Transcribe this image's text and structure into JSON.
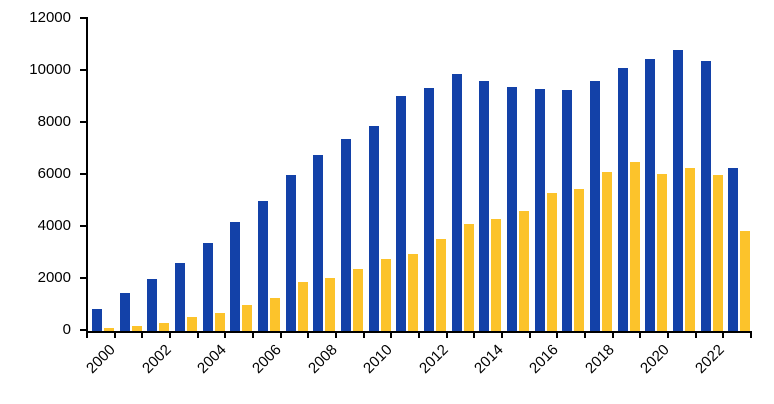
{
  "chart_data": {
    "type": "bar",
    "title": "",
    "xlabel": "",
    "ylabel": "",
    "categories": [
      "2000",
      "2001",
      "2002",
      "2003",
      "2004",
      "2005",
      "2006",
      "2007",
      "2008",
      "2009",
      "2010",
      "2011",
      "2012",
      "2013",
      "2014",
      "2015",
      "2016",
      "2017",
      "2018",
      "2019",
      "2020",
      "2021",
      "2022",
      "2023"
    ],
    "series": [
      {
        "name": "blue-series",
        "color": "#1341A8",
        "values": [
          850,
          1450,
          2000,
          2600,
          3400,
          4200,
          5000,
          6000,
          6750,
          7400,
          7900,
          9050,
          9350,
          9900,
          9600,
          9400,
          9300,
          9250,
          9600,
          10100,
          10450,
          10800,
          10400,
          6250
        ]
      },
      {
        "name": "yellow-series",
        "color": "#FCC32B",
        "values": [
          100,
          180,
          300,
          550,
          700,
          1000,
          1250,
          1900,
          2050,
          2400,
          2750,
          2950,
          3550,
          4100,
          4300,
          4600,
          5300,
          5450,
          6100,
          6500,
          6050,
          6250,
          6000,
          3850
        ]
      }
    ],
    "ylim": [
      0,
      12000
    ],
    "ytick_step": 2000,
    "ytick_labels": [
      "0",
      "2000",
      "4000",
      "6000",
      "8000",
      "10000",
      "12000"
    ],
    "xtick_labels": [
      "2000",
      "2002",
      "2004",
      "2006",
      "2008",
      "2010",
      "2012",
      "2014",
      "2016",
      "2018",
      "2020",
      "2022"
    ],
    "xtick_label_every": 2,
    "grid": false,
    "legend": false,
    "axis_color": "#000000",
    "background": "#FFFFFF"
  }
}
